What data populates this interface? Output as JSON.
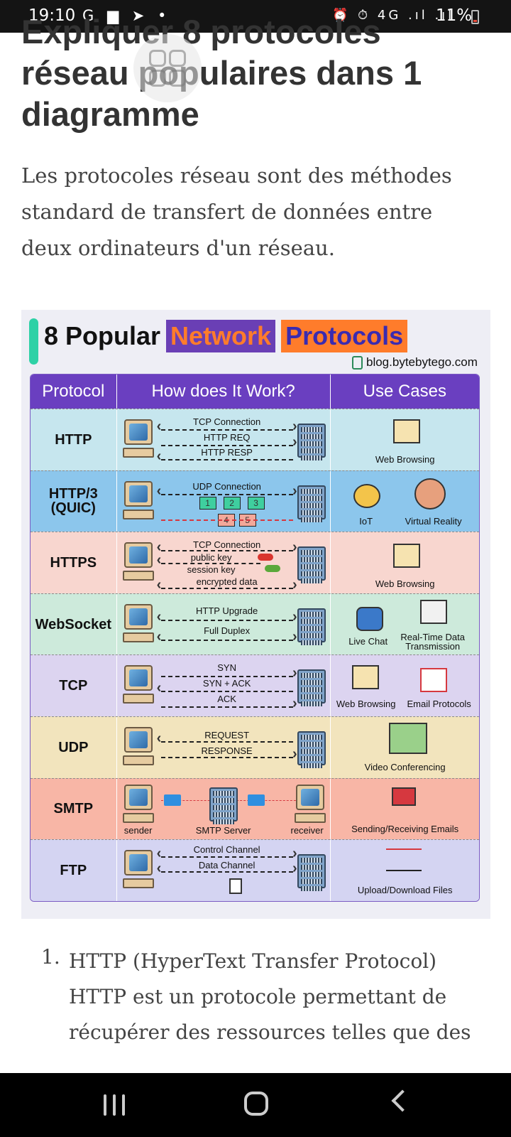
{
  "status": {
    "time": "19:10",
    "left_icons": "G ▆ ➤ •",
    "right_icons": "⏰ ⏱ 4G .ıl .ıl",
    "battery": "11%"
  },
  "article": {
    "title": "Expliquer 8 protocoles réseau populaires dans 1 diagramme",
    "intro": "Les protocoles réseau sont des méthodes standard de transfert de données entre deux ordinateurs d'un réseau."
  },
  "infographic": {
    "title_prefix": "8 Popular",
    "title_word1": "Network",
    "title_word2": "Protocols",
    "source": "blog.bytebytego.com",
    "columns": [
      "Protocol",
      "How does It Work?",
      "Use Cases"
    ],
    "rows": [
      {
        "protocol": "HTTP",
        "bg": "#c6e6ee",
        "flows": [
          "TCP Connection",
          "HTTP REQ",
          "HTTP RESP"
        ],
        "use_cases": [
          "Web Browsing"
        ]
      },
      {
        "protocol": "HTTP/3 (QUIC)",
        "bg": "#8cc6ec",
        "flows": [
          "UDP Connection",
          "1",
          "2",
          "3",
          "4",
          "5"
        ],
        "use_cases": [
          "IoT",
          "Virtual Reality"
        ]
      },
      {
        "protocol": "HTTPS",
        "bg": "#f8d6cf",
        "flows": [
          "TCP Connection",
          "public key",
          "session key",
          "encrypted data"
        ],
        "use_cases": [
          "Web Browsing"
        ]
      },
      {
        "protocol": "WebSocket",
        "bg": "#cdeadb",
        "flows": [
          "HTTP Upgrade",
          "Full Duplex"
        ],
        "use_cases": [
          "Live Chat",
          "Real-Time Data Transmission"
        ]
      },
      {
        "protocol": "TCP",
        "bg": "#dcd4f0",
        "flows": [
          "SYN",
          "SYN + ACK",
          "ACK"
        ],
        "use_cases": [
          "Web Browsing",
          "Email Protocols"
        ]
      },
      {
        "protocol": "UDP",
        "bg": "#f2e4bd",
        "flows": [
          "REQUEST",
          "RESPONSE"
        ],
        "use_cases": [
          "Video Conferencing"
        ]
      },
      {
        "protocol": "SMTP",
        "bg": "#f8b6a6",
        "flows": [
          "sender",
          "SMTP Server",
          "receiver"
        ],
        "use_cases": [
          "Sending/Receiving Emails"
        ]
      },
      {
        "protocol": "FTP",
        "bg": "#d4d4f2",
        "flows": [
          "Control Channel",
          "Data Channel"
        ],
        "use_cases": [
          "Upload/Download Files"
        ]
      }
    ]
  },
  "list": {
    "number": "1.",
    "text": "HTTP (HyperText Transfer Protocol) HTTP est un protocole permettant de récupérer des ressources telles que des"
  },
  "colors": {
    "header_purple": "#6a3fc0",
    "accent_orange": "#ff7c2b",
    "accent_teal": "#2ed1a6"
  }
}
